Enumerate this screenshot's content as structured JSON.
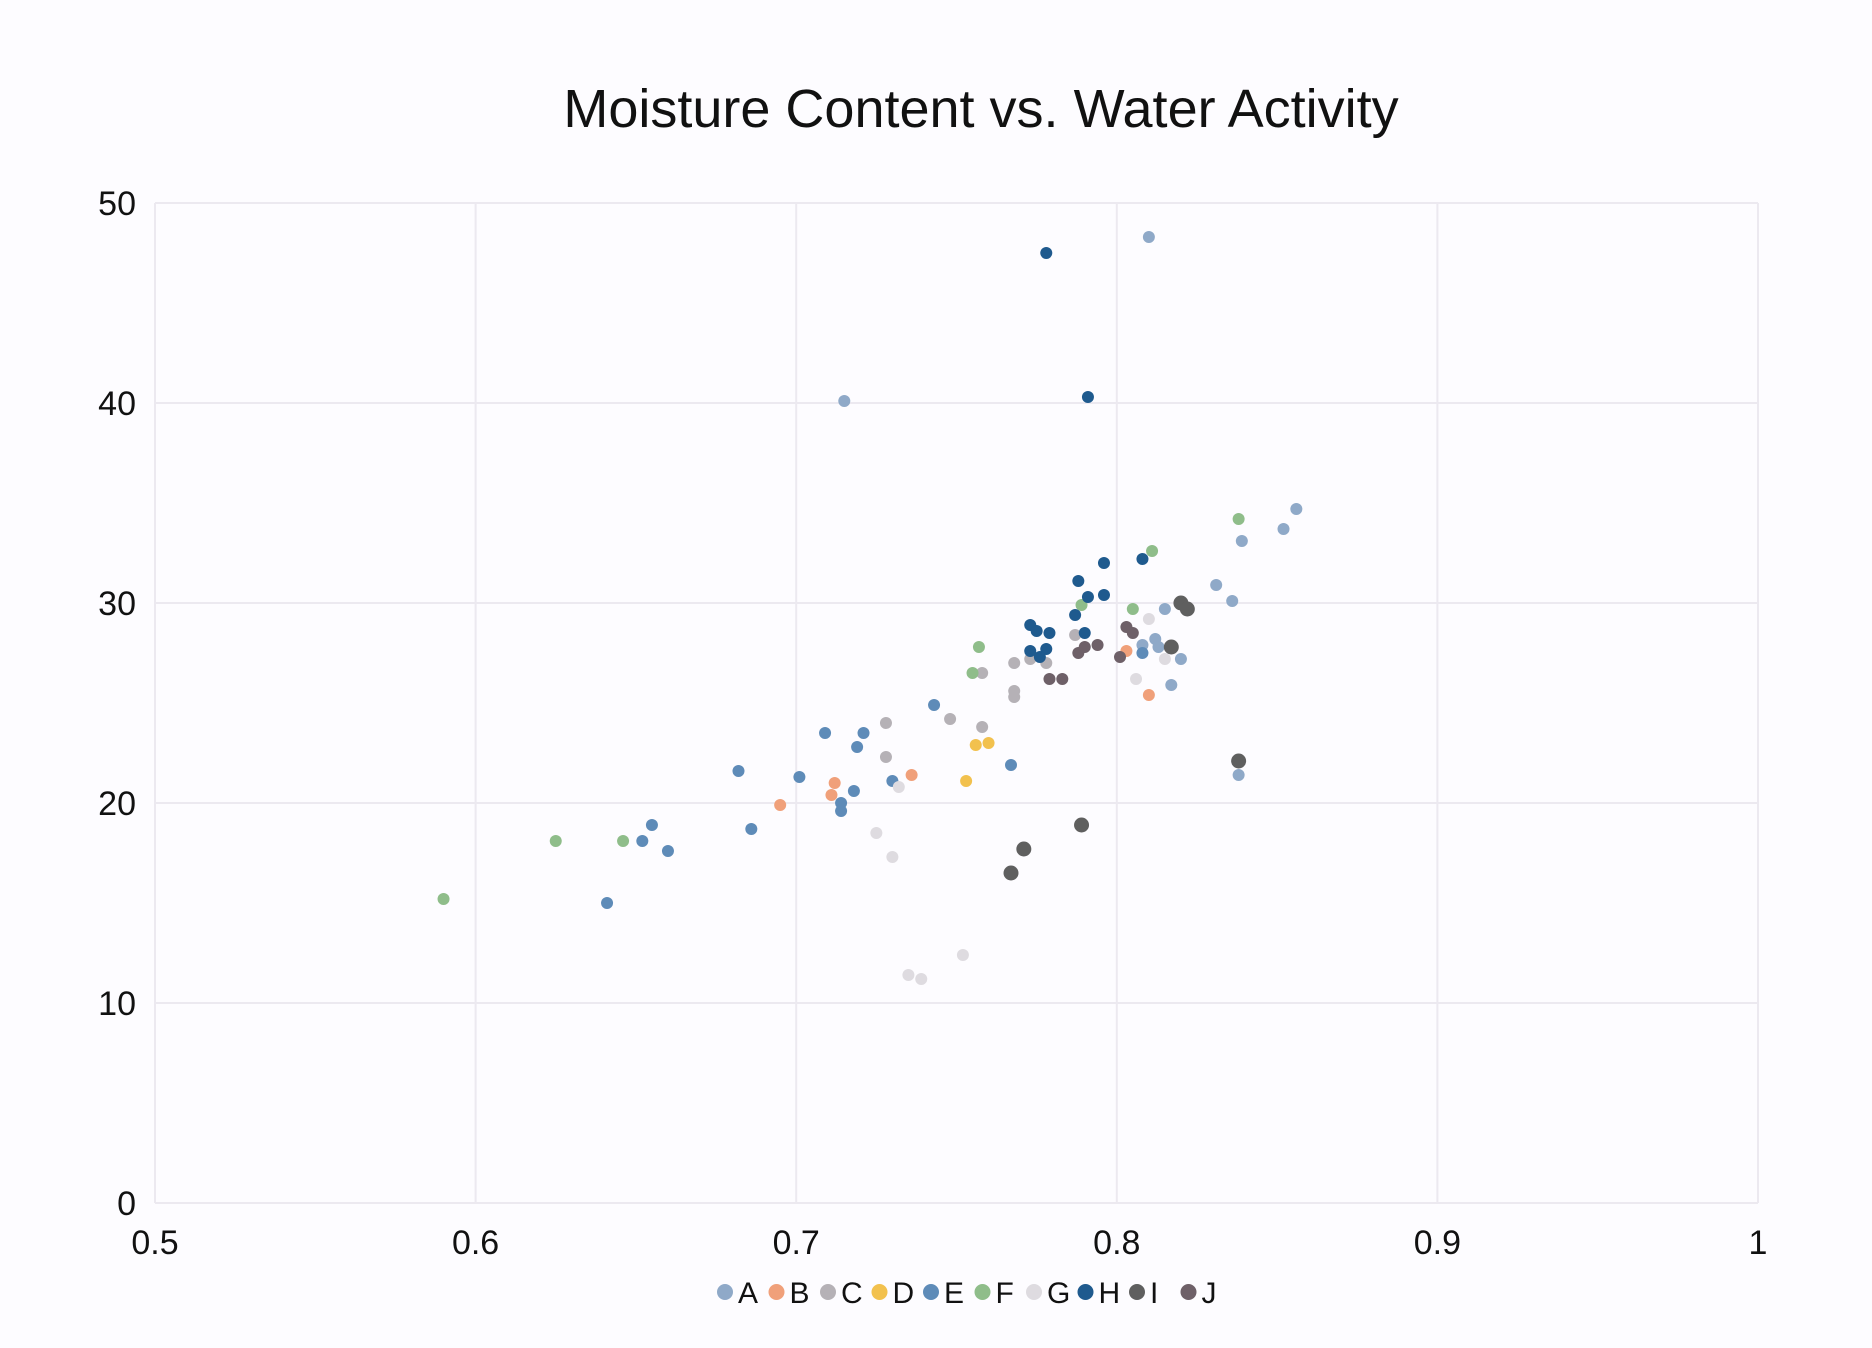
{
  "chart_data": {
    "type": "scatter",
    "title": "Moisture Content vs. Water Activity",
    "xlabel": "",
    "ylabel": "",
    "xlim": [
      0.5,
      1
    ],
    "ylim": [
      0,
      50
    ],
    "x_ticks": [
      0.5,
      0.6,
      0.7,
      0.8,
      0.9,
      1
    ],
    "x_tick_labels": [
      "0.5",
      "0.6",
      "0.7",
      "0.8",
      "0.9",
      "1"
    ],
    "y_ticks": [
      0,
      10,
      20,
      30,
      40,
      50
    ],
    "y_tick_labels": [
      "0",
      "10",
      "20",
      "30",
      "40",
      "50"
    ],
    "grid": true,
    "legend_position": "bottom",
    "series": [
      {
        "name": "A",
        "color": "#8fa9c8",
        "points": [
          [
            0.81,
            48.3
          ],
          [
            0.715,
            40.1
          ],
          [
            0.856,
            34.7
          ],
          [
            0.852,
            33.7
          ],
          [
            0.839,
            33.1
          ],
          [
            0.831,
            30.9
          ],
          [
            0.836,
            30.1
          ],
          [
            0.815,
            29.7
          ],
          [
            0.812,
            28.2
          ],
          [
            0.813,
            27.8
          ],
          [
            0.808,
            27.9
          ],
          [
            0.82,
            27.2
          ],
          [
            0.817,
            25.9
          ],
          [
            0.838,
            21.4
          ]
        ]
      },
      {
        "name": "B",
        "color": "#f0a07a",
        "points": [
          [
            0.803,
            27.6
          ],
          [
            0.81,
            25.4
          ],
          [
            0.736,
            21.4
          ],
          [
            0.712,
            21.0
          ],
          [
            0.711,
            20.4
          ],
          [
            0.695,
            19.9
          ]
        ]
      },
      {
        "name": "C",
        "color": "#b5b1b6",
        "points": [
          [
            0.787,
            28.4
          ],
          [
            0.768,
            27.0
          ],
          [
            0.773,
            27.2
          ],
          [
            0.778,
            27.0
          ],
          [
            0.758,
            26.5
          ],
          [
            0.768,
            25.6
          ],
          [
            0.768,
            25.3
          ],
          [
            0.728,
            24.0
          ],
          [
            0.748,
            24.2
          ],
          [
            0.758,
            23.8
          ],
          [
            0.728,
            22.3
          ]
        ]
      },
      {
        "name": "D",
        "color": "#f2c14e",
        "points": [
          [
            0.76,
            23.0
          ],
          [
            0.756,
            22.9
          ],
          [
            0.753,
            21.1
          ]
        ]
      },
      {
        "name": "E",
        "color": "#5e8bb8",
        "points": [
          [
            0.743,
            24.9
          ],
          [
            0.709,
            23.5
          ],
          [
            0.721,
            23.5
          ],
          [
            0.719,
            22.8
          ],
          [
            0.767,
            21.9
          ],
          [
            0.682,
            21.6
          ],
          [
            0.701,
            21.3
          ],
          [
            0.73,
            21.1
          ],
          [
            0.718,
            20.6
          ],
          [
            0.714,
            20.0
          ],
          [
            0.714,
            19.6
          ],
          [
            0.655,
            18.9
          ],
          [
            0.686,
            18.7
          ],
          [
            0.652,
            18.1
          ],
          [
            0.66,
            17.6
          ],
          [
            0.641,
            15.0
          ],
          [
            0.808,
            27.5
          ]
        ]
      },
      {
        "name": "F",
        "color": "#8fbd8a",
        "points": [
          [
            0.838,
            34.2
          ],
          [
            0.811,
            32.6
          ],
          [
            0.805,
            29.7
          ],
          [
            0.789,
            29.9
          ],
          [
            0.757,
            27.8
          ],
          [
            0.755,
            26.5
          ],
          [
            0.625,
            18.1
          ],
          [
            0.646,
            18.1
          ],
          [
            0.59,
            15.2
          ]
        ]
      },
      {
        "name": "G",
        "color": "#dedbe0",
        "points": [
          [
            0.81,
            29.2
          ],
          [
            0.815,
            27.2
          ],
          [
            0.806,
            26.2
          ],
          [
            0.732,
            20.8
          ],
          [
            0.725,
            18.5
          ],
          [
            0.73,
            17.3
          ],
          [
            0.752,
            12.4
          ],
          [
            0.735,
            11.4
          ],
          [
            0.739,
            11.2
          ]
        ]
      },
      {
        "name": "H",
        "color": "#1f5a8e",
        "points": [
          [
            0.778,
            47.5
          ],
          [
            0.791,
            40.3
          ],
          [
            0.808,
            32.2
          ],
          [
            0.796,
            32.0
          ],
          [
            0.788,
            31.1
          ],
          [
            0.796,
            30.4
          ],
          [
            0.791,
            30.3
          ],
          [
            0.787,
            29.4
          ],
          [
            0.773,
            28.9
          ],
          [
            0.775,
            28.6
          ],
          [
            0.779,
            28.5
          ],
          [
            0.79,
            28.5
          ],
          [
            0.773,
            27.6
          ],
          [
            0.778,
            27.7
          ],
          [
            0.776,
            27.3
          ]
        ]
      },
      {
        "name": "I",
        "color": "#5f5f5f",
        "points": [
          [
            0.82,
            30.0
          ],
          [
            0.822,
            29.7
          ],
          [
            0.817,
            27.8
          ],
          [
            0.838,
            22.1
          ],
          [
            0.789,
            18.9
          ],
          [
            0.771,
            17.7
          ],
          [
            0.767,
            16.5
          ]
        ]
      },
      {
        "name": "J",
        "color": "#6e6068",
        "points": [
          [
            0.803,
            28.8
          ],
          [
            0.805,
            28.5
          ],
          [
            0.794,
            27.9
          ],
          [
            0.79,
            27.8
          ],
          [
            0.788,
            27.5
          ],
          [
            0.801,
            27.3
          ],
          [
            0.779,
            26.2
          ],
          [
            0.783,
            26.2
          ]
        ]
      }
    ]
  }
}
